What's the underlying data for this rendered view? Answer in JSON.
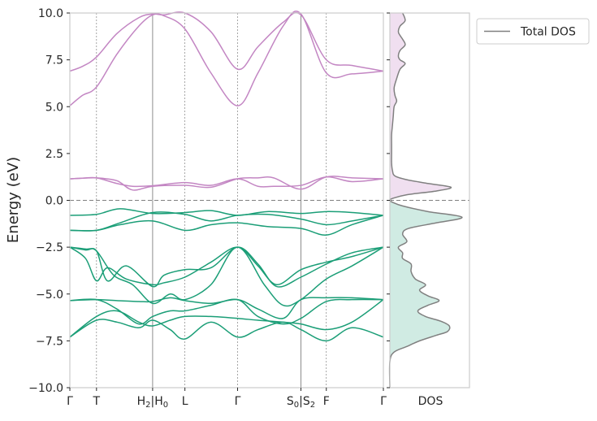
{
  "chart_data": [
    {
      "type": "line",
      "ylabel": "Energy (eV)",
      "ylim": [
        -10,
        10
      ],
      "yticks": [
        "−10.0",
        "−7.5",
        "−5.0",
        "−2.5",
        "0.0",
        "2.5",
        "5.0",
        "7.5",
        "10.0"
      ],
      "yticks_values": [
        -10,
        -7.5,
        -5,
        -2.5,
        0,
        2.5,
        5,
        7.5,
        10
      ],
      "kpath": [
        {
          "label": "Γ",
          "pos": 0.0,
          "main": "Γ",
          "sub": ""
        },
        {
          "label": "T",
          "pos": 0.085,
          "main": "T",
          "sub": ""
        },
        {
          "label": "H2|H0",
          "pos": 0.264,
          "main": "H",
          "sub": "2",
          "main2": "|H",
          "sub2": "0",
          "break": true
        },
        {
          "label": "L",
          "pos": 0.367,
          "main": "L",
          "sub": ""
        },
        {
          "label": "Γ",
          "pos": 0.535,
          "main": "Γ",
          "sub": ""
        },
        {
          "label": "S0|S2",
          "pos": 0.737,
          "main": "S",
          "sub": "0",
          "main2": "|S",
          "sub2": "2",
          "break": true
        },
        {
          "label": "F",
          "pos": 0.818,
          "main": "F",
          "sub": ""
        },
        {
          "label": "Γ",
          "pos": 1.0,
          "main": "Γ",
          "sub": ""
        }
      ],
      "fermi_level": 0,
      "colors": {
        "conduction": "#c386c3",
        "valence": "#1b9e77",
        "dos_line": "#808080",
        "fermi": "#808080"
      },
      "conduction_bands": [
        {
          "x": [
            0,
            0.04,
            0.085,
            0.15,
            0.2,
            0.264,
            0.367,
            0.45,
            0.535,
            0.6,
            0.65,
            0.737,
            0.818,
            0.9,
            1.0
          ],
          "y": [
            1.15,
            1.18,
            1.2,
            0.9,
            0.75,
            0.78,
            0.95,
            0.8,
            1.15,
            0.75,
            0.75,
            0.8,
            1.25,
            1.0,
            1.15
          ]
        },
        {
          "x": [
            0,
            0.04,
            0.085,
            0.15,
            0.2,
            0.264,
            0.367,
            0.45,
            0.535,
            0.6,
            0.65,
            0.737,
            0.818,
            0.9,
            1.0
          ],
          "y": [
            1.15,
            1.18,
            1.2,
            1.05,
            0.55,
            0.75,
            0.8,
            0.7,
            1.15,
            1.2,
            1.2,
            0.6,
            1.25,
            1.2,
            1.15
          ]
        },
        {
          "x": [
            0,
            0.04,
            0.085,
            0.15,
            0.22,
            0.264,
            0.3,
            0.367,
            0.45,
            0.535,
            0.6,
            0.68,
            0.737,
            0.818,
            0.9,
            1.0
          ],
          "y": [
            5.05,
            5.6,
            6.05,
            7.8,
            9.3,
            9.9,
            9.85,
            9.15,
            6.8,
            5.05,
            6.8,
            9.3,
            9.95,
            6.8,
            6.75,
            6.9
          ]
        },
        {
          "x": [
            0,
            0.04,
            0.085,
            0.15,
            0.22,
            0.264,
            0.3,
            0.367,
            0.45,
            0.535,
            0.6,
            0.68,
            0.737,
            0.818,
            0.9,
            1.0
          ],
          "y": [
            6.9,
            7.15,
            7.65,
            8.9,
            9.75,
            9.95,
            9.9,
            10.0,
            9.0,
            7.0,
            8.2,
            9.5,
            9.9,
            7.5,
            7.2,
            6.9
          ]
        }
      ],
      "valence_bands": [
        {
          "x": [
            0,
            0.085,
            0.16,
            0.264,
            0.367,
            0.45,
            0.535,
            0.63,
            0.737,
            0.818,
            0.9,
            1.0
          ],
          "y": [
            -0.8,
            -0.75,
            -0.45,
            -0.7,
            -0.65,
            -0.55,
            -0.8,
            -0.6,
            -0.7,
            -0.6,
            -0.65,
            -0.8
          ]
        },
        {
          "x": [
            0,
            0.085,
            0.16,
            0.264,
            0.367,
            0.45,
            0.535,
            0.63,
            0.737,
            0.818,
            0.9,
            1.0
          ],
          "y": [
            -1.6,
            -1.6,
            -1.2,
            -0.65,
            -0.75,
            -1.1,
            -0.8,
            -0.75,
            -1.0,
            -1.3,
            -1.1,
            -0.8
          ]
        },
        {
          "x": [
            0,
            0.085,
            0.16,
            0.264,
            0.367,
            0.45,
            0.535,
            0.63,
            0.737,
            0.818,
            0.9,
            1.0
          ],
          "y": [
            -1.6,
            -1.6,
            -1.3,
            -1.1,
            -1.6,
            -1.3,
            -1.2,
            -1.4,
            -1.5,
            -1.85,
            -1.3,
            -0.8
          ]
        },
        {
          "x": [
            0,
            0.05,
            0.085,
            0.12,
            0.18,
            0.264,
            0.3,
            0.367,
            0.45,
            0.535,
            0.6,
            0.66,
            0.737,
            0.818,
            0.9,
            1.0
          ],
          "y": [
            -2.5,
            -2.65,
            -2.7,
            -4.3,
            -3.5,
            -4.6,
            -4.0,
            -3.7,
            -3.6,
            -2.5,
            -3.4,
            -4.6,
            -4.1,
            -3.4,
            -2.8,
            -2.5
          ]
        },
        {
          "x": [
            0,
            0.05,
            0.085,
            0.12,
            0.18,
            0.264,
            0.3,
            0.367,
            0.45,
            0.535,
            0.6,
            0.66,
            0.737,
            0.818,
            0.9,
            1.0
          ],
          "y": [
            -2.5,
            -3.1,
            -4.3,
            -3.6,
            -4.2,
            -4.5,
            -4.4,
            -4.1,
            -3.3,
            -2.5,
            -3.5,
            -4.5,
            -3.7,
            -3.3,
            -3.0,
            -2.5
          ]
        },
        {
          "x": [
            0,
            0.05,
            0.085,
            0.14,
            0.2,
            0.264,
            0.32,
            0.367,
            0.45,
            0.535,
            0.62,
            0.68,
            0.737,
            0.818,
            0.9,
            1.0
          ],
          "y": [
            -2.5,
            -2.6,
            -2.7,
            -4.0,
            -4.5,
            -5.5,
            -5.0,
            -5.3,
            -4.5,
            -2.5,
            -4.5,
            -5.6,
            -5.3,
            -4.2,
            -3.5,
            -2.5
          ]
        },
        {
          "x": [
            0,
            0.085,
            0.15,
            0.22,
            0.264,
            0.32,
            0.367,
            0.45,
            0.535,
            0.6,
            0.68,
            0.737,
            0.818,
            0.9,
            1.0
          ],
          "y": [
            -5.35,
            -5.3,
            -5.35,
            -5.4,
            -5.4,
            -5.2,
            -5.35,
            -5.5,
            -5.3,
            -5.8,
            -6.3,
            -5.3,
            -5.2,
            -5.2,
            -5.3
          ]
        },
        {
          "x": [
            0,
            0.085,
            0.15,
            0.22,
            0.264,
            0.32,
            0.367,
            0.45,
            0.535,
            0.6,
            0.68,
            0.737,
            0.818,
            0.9,
            1.0
          ],
          "y": [
            -5.35,
            -5.3,
            -5.8,
            -6.6,
            -6.2,
            -5.9,
            -5.9,
            -5.6,
            -5.3,
            -6.2,
            -6.6,
            -6.3,
            -5.4,
            -5.3,
            -5.3
          ]
        },
        {
          "x": [
            0,
            0.085,
            0.15,
            0.22,
            0.264,
            0.32,
            0.367,
            0.45,
            0.535,
            0.6,
            0.68,
            0.737,
            0.818,
            0.9,
            1.0
          ],
          "y": [
            -7.3,
            -6.2,
            -5.9,
            -6.5,
            -6.7,
            -6.4,
            -6.2,
            -6.2,
            -6.3,
            -6.4,
            -6.5,
            -6.6,
            -6.9,
            -6.5,
            -5.3
          ]
        },
        {
          "x": [
            0,
            0.085,
            0.15,
            0.22,
            0.264,
            0.32,
            0.367,
            0.45,
            0.535,
            0.6,
            0.68,
            0.737,
            0.818,
            0.9,
            1.0
          ],
          "y": [
            -7.3,
            -6.4,
            -6.5,
            -6.8,
            -6.4,
            -6.9,
            -7.4,
            -6.5,
            -7.3,
            -6.9,
            -6.5,
            -6.9,
            -7.5,
            -6.8,
            -7.3
          ]
        }
      ]
    },
    {
      "type": "area",
      "xlabel": "DOS",
      "ylim": [
        -10,
        10
      ],
      "legend": {
        "entries": [
          "Total DOS"
        ],
        "placement": "outside-top-right"
      },
      "colors": {
        "line": "#808080",
        "conduction_fill": "#f0dff0",
        "valence_fill": "#d0ebe3"
      },
      "energy": [
        -10.0,
        -8.6,
        -8.1,
        -7.8,
        -7.5,
        -7.2,
        -7.0,
        -6.7,
        -6.45,
        -6.2,
        -5.9,
        -5.6,
        -5.35,
        -5.1,
        -4.8,
        -4.5,
        -4.2,
        -3.8,
        -3.4,
        -3.1,
        -2.8,
        -2.5,
        -2.2,
        -1.8,
        -1.5,
        -1.2,
        -0.9,
        -0.6,
        -0.3,
        -0.1,
        0.0,
        0.1,
        0.3,
        0.5,
        0.7,
        0.9,
        1.1,
        1.3,
        1.6,
        2.0,
        2.5,
        3.0,
        3.5,
        4.0,
        4.5,
        5.0,
        5.3,
        5.6,
        6.0,
        6.5,
        7.0,
        7.3,
        7.5,
        7.7,
        8.0,
        8.3,
        8.6,
        8.8,
        9.0,
        9.3,
        9.6,
        10.0
      ],
      "dos": [
        0.0,
        0.0,
        0.05,
        0.2,
        0.35,
        0.55,
        0.68,
        0.7,
        0.6,
        0.42,
        0.33,
        0.45,
        0.58,
        0.45,
        0.35,
        0.42,
        0.3,
        0.25,
        0.25,
        0.15,
        0.15,
        0.1,
        0.2,
        0.15,
        0.22,
        0.55,
        0.85,
        0.45,
        0.15,
        0.03,
        0.0,
        0.03,
        0.2,
        0.55,
        0.72,
        0.45,
        0.2,
        0.06,
        0.03,
        0.02,
        0.02,
        0.02,
        0.02,
        0.03,
        0.04,
        0.05,
        0.08,
        0.06,
        0.05,
        0.08,
        0.12,
        0.18,
        0.12,
        0.1,
        0.12,
        0.18,
        0.15,
        0.12,
        0.1,
        0.12,
        0.18,
        0.15
      ]
    }
  ]
}
